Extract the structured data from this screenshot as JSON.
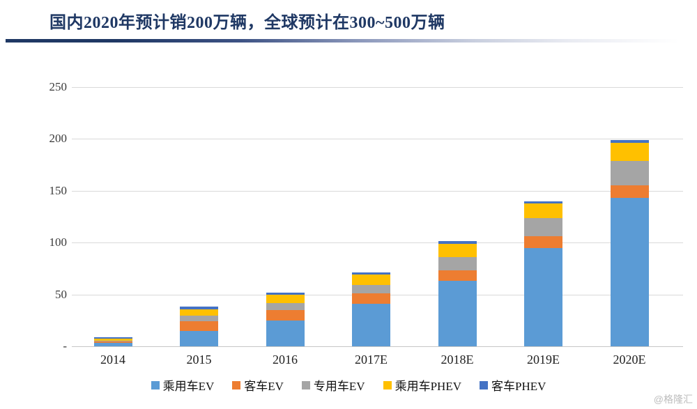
{
  "title": "国内2020年预计销200万辆，全球预计在300~500万辆",
  "watermark": "@格隆汇",
  "colors": {
    "title_text": "#1f3864",
    "gridline": "#d9d9d9",
    "series_blue": "#5B9BD5",
    "series_orange": "#ED7D31",
    "series_gray": "#A5A5A5",
    "series_yellow": "#FFC000",
    "series_darkblue": "#4472C4"
  },
  "chart_data": {
    "type": "bar",
    "stacked": true,
    "title": "国内2020年预计销200万辆，全球预计在300~500万辆",
    "xlabel": "",
    "ylabel": "",
    "unit": "万辆",
    "categories": [
      "2014",
      "2015",
      "2016",
      "2017E",
      "2018E",
      "2019E",
      "2020E"
    ],
    "series": [
      {
        "name": "乘用车EV",
        "color": "#5B9BD5",
        "values": [
          3.5,
          15,
          25,
          41,
          63,
          95,
          143
        ]
      },
      {
        "name": "客车EV",
        "color": "#ED7D31",
        "values": [
          1.5,
          9,
          10,
          10,
          10,
          11,
          12
        ]
      },
      {
        "name": "专用车EV",
        "color": "#A5A5A5",
        "values": [
          0.5,
          5.5,
          6.5,
          8,
          13,
          17.5,
          24
        ]
      },
      {
        "name": "乘用车PHEV",
        "color": "#FFC000",
        "values": [
          2,
          6,
          8,
          10,
          13,
          14,
          17
        ]
      },
      {
        "name": "客车PHEV",
        "color": "#4472C4",
        "values": [
          1,
          2.5,
          2.5,
          2,
          2.5,
          2.5,
          3
        ]
      }
    ],
    "totals": [
      8.5,
      38,
      52,
      71,
      101.5,
      140,
      199
    ],
    "ylim": [
      0,
      250
    ],
    "ytick_interval": 50,
    "ytick_labels": [
      "-",
      "50",
      "100",
      "150",
      "200",
      "250"
    ],
    "grid": true,
    "legend_position": "bottom"
  }
}
